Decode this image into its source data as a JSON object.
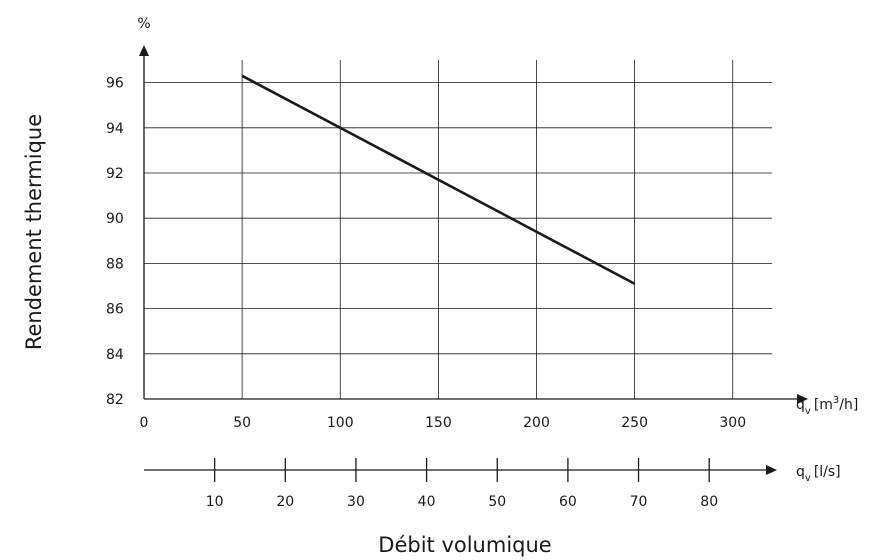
{
  "chart_data": {
    "type": "line",
    "title": "",
    "ylabel": "Rendement thermique",
    "xlabel": "Débit volumique",
    "y_unit": "%",
    "x_unit_primary": {
      "q": "q",
      "sub": "v",
      "pre": "[m",
      "sup": "3",
      "post": "/h]"
    },
    "x_unit_secondary": {
      "q": "q",
      "sub": "v",
      "text": "[l/s]"
    },
    "ylim": [
      82,
      97
    ],
    "xlim": [
      0,
      320
    ],
    "yticks": [
      82,
      84,
      86,
      88,
      90,
      92,
      94,
      96
    ],
    "xticks": [
      0,
      50,
      100,
      150,
      200,
      250,
      300
    ],
    "xticks_secondary": [
      10,
      20,
      30,
      40,
      50,
      60,
      70,
      80
    ],
    "secondary_per_primary": 3.6,
    "grid": true,
    "series": [
      {
        "x": [
          50,
          250
        ],
        "y": [
          96.3,
          87.1
        ]
      }
    ]
  }
}
